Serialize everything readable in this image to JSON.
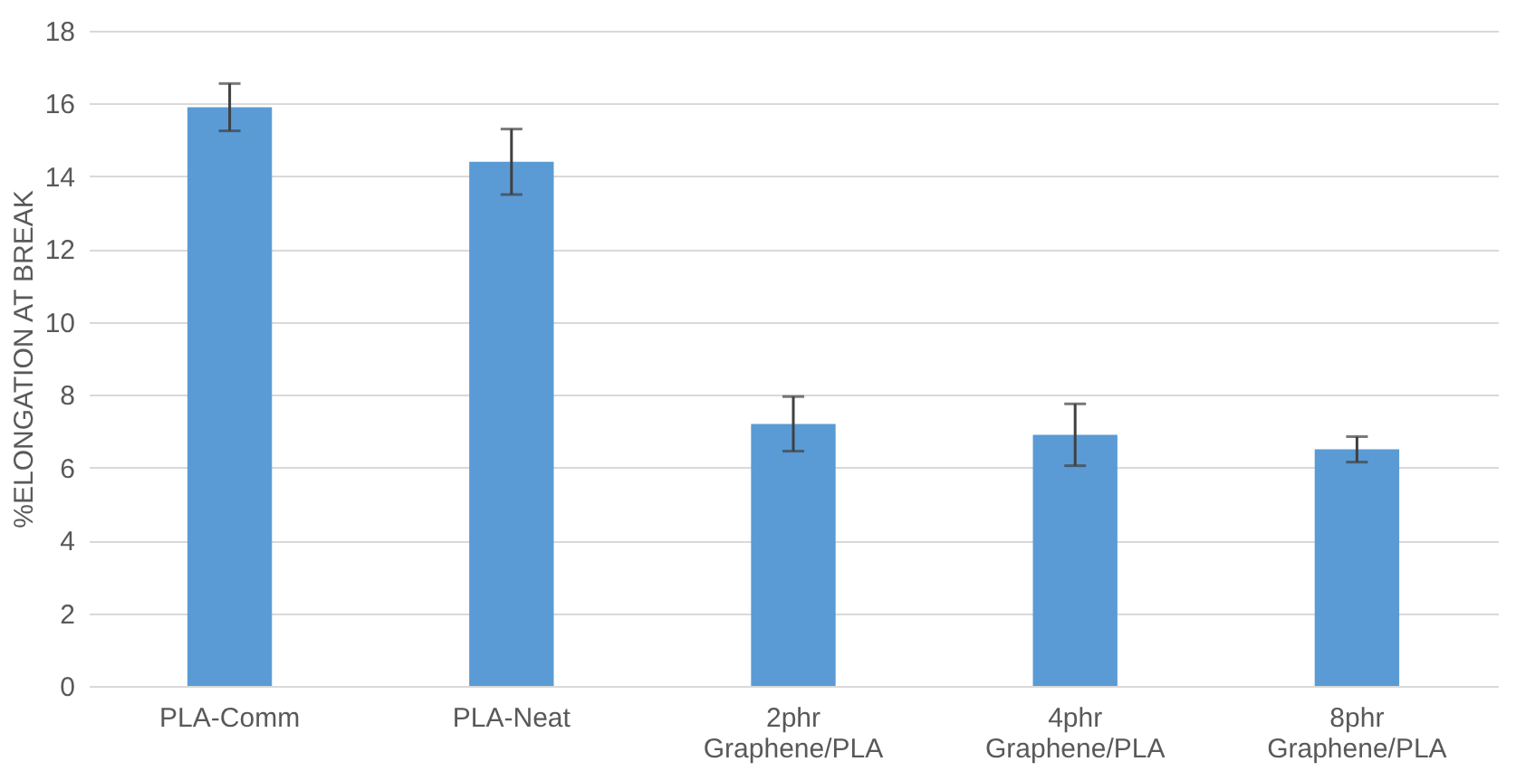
{
  "chart_data": {
    "type": "bar",
    "ylabel": "%ELONGATION AT BREAK",
    "categories": [
      "PLA-Comm",
      "PLA-Neat",
      "2phr Graphene/PLA",
      "4phr Graphene/PLA",
      "8phr Graphene/PLA"
    ],
    "values": [
      15.9,
      14.4,
      7.2,
      6.9,
      6.5
    ],
    "errors": [
      0.65,
      0.9,
      0.75,
      0.85,
      0.35
    ],
    "color": "#5b9bd5",
    "ylim": [
      0,
      18
    ],
    "yticks": [
      0,
      2,
      4,
      6,
      8,
      10,
      12,
      14,
      16,
      18
    ],
    "grid": "y"
  }
}
